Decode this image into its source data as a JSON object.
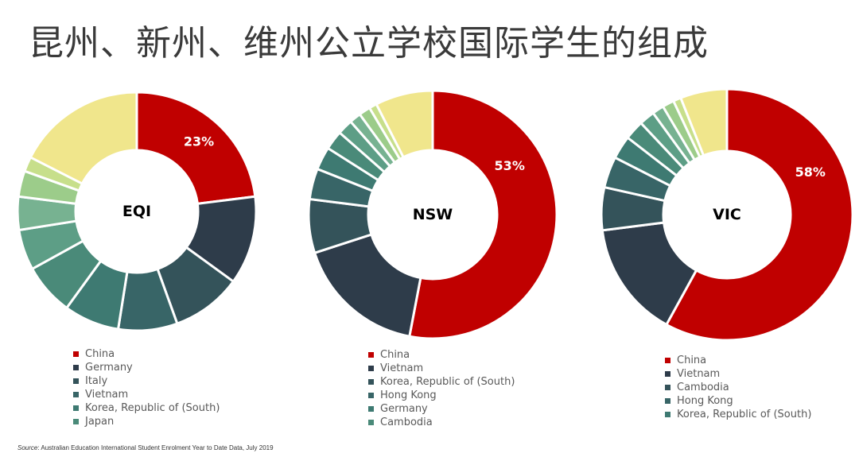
{
  "title": "昆州、新州、维州公立学校国际学生的组成",
  "source": {
    "label": "Source",
    "text": ": Australian Education International Student Enrolment Year to Date Data, July 2019"
  },
  "chart_data": [
    {
      "type": "donut",
      "center_label": "EQI",
      "slices": [
        {
          "name": "China",
          "value": 23,
          "color": "#c00000",
          "label": "23%"
        },
        {
          "name": "Germany",
          "value": 12,
          "color": "#2e3c4a"
        },
        {
          "name": "Italy",
          "value": 9.5,
          "color": "#34535a"
        },
        {
          "name": "Vietnam",
          "value": 8,
          "color": "#386567"
        },
        {
          "name": "Korea, Republic of (South)",
          "value": 7.5,
          "color": "#3e7a72"
        },
        {
          "name": "Japan",
          "value": 7,
          "color": "#4a8a79"
        },
        {
          "name": "",
          "value": 5.5,
          "color": "#5d9e86"
        },
        {
          "name": "",
          "value": 4.5,
          "color": "#77b291"
        },
        {
          "name": "",
          "value": 3.5,
          "color": "#9ccc8a"
        },
        {
          "name": "",
          "value": 2,
          "color": "#c7df8b"
        },
        {
          "name": "",
          "value": 17.5,
          "color": "#f0e68c"
        }
      ],
      "legend": [
        "China",
        "Germany",
        "Italy",
        "Vietnam",
        "Korea, Republic of (South)",
        "Japan"
      ]
    },
    {
      "type": "donut",
      "center_label": "NSW",
      "slices": [
        {
          "name": "China",
          "value": 53,
          "color": "#c00000",
          "label": "53%"
        },
        {
          "name": "Vietnam",
          "value": 17,
          "color": "#2e3c4a"
        },
        {
          "name": "Korea, Republic of (South)",
          "value": 7,
          "color": "#34535a"
        },
        {
          "name": "Hong Kong",
          "value": 4,
          "color": "#386567"
        },
        {
          "name": "Germany",
          "value": 3,
          "color": "#3e7a72"
        },
        {
          "name": "Cambodia",
          "value": 2.5,
          "color": "#4a8a79"
        },
        {
          "name": "",
          "value": 2,
          "color": "#5d9e86"
        },
        {
          "name": "",
          "value": 1.5,
          "color": "#77b291"
        },
        {
          "name": "",
          "value": 1.5,
          "color": "#9ccc8a"
        },
        {
          "name": "",
          "value": 1,
          "color": "#c7df8b"
        },
        {
          "name": "",
          "value": 7.5,
          "color": "#f0e68c"
        }
      ],
      "legend": [
        "China",
        "Vietnam",
        "Korea, Republic of (South)",
        "Hong Kong",
        "Germany",
        "Cambodia"
      ]
    },
    {
      "type": "donut",
      "center_label": "VIC",
      "slices": [
        {
          "name": "China",
          "value": 58,
          "color": "#c00000",
          "label": "58%"
        },
        {
          "name": "Vietnam",
          "value": 15,
          "color": "#2e3c4a"
        },
        {
          "name": "Cambodia",
          "value": 5.5,
          "color": "#34535a"
        },
        {
          "name": "Hong Kong",
          "value": 4,
          "color": "#386567"
        },
        {
          "name": "Korea, Republic of (South)",
          "value": 3,
          "color": "#3e7a72"
        },
        {
          "name": "",
          "value": 2.5,
          "color": "#4a8a79"
        },
        {
          "name": "",
          "value": 2,
          "color": "#5d9e86"
        },
        {
          "name": "",
          "value": 1.5,
          "color": "#77b291"
        },
        {
          "name": "",
          "value": 1.5,
          "color": "#9ccc8a"
        },
        {
          "name": "",
          "value": 1,
          "color": "#c7df8b"
        },
        {
          "name": "",
          "value": 6,
          "color": "#f0e68c"
        }
      ],
      "legend": [
        "China",
        "Vietnam",
        "Cambodia",
        "Hong Kong",
        "Korea, Republic of (South)"
      ]
    }
  ]
}
